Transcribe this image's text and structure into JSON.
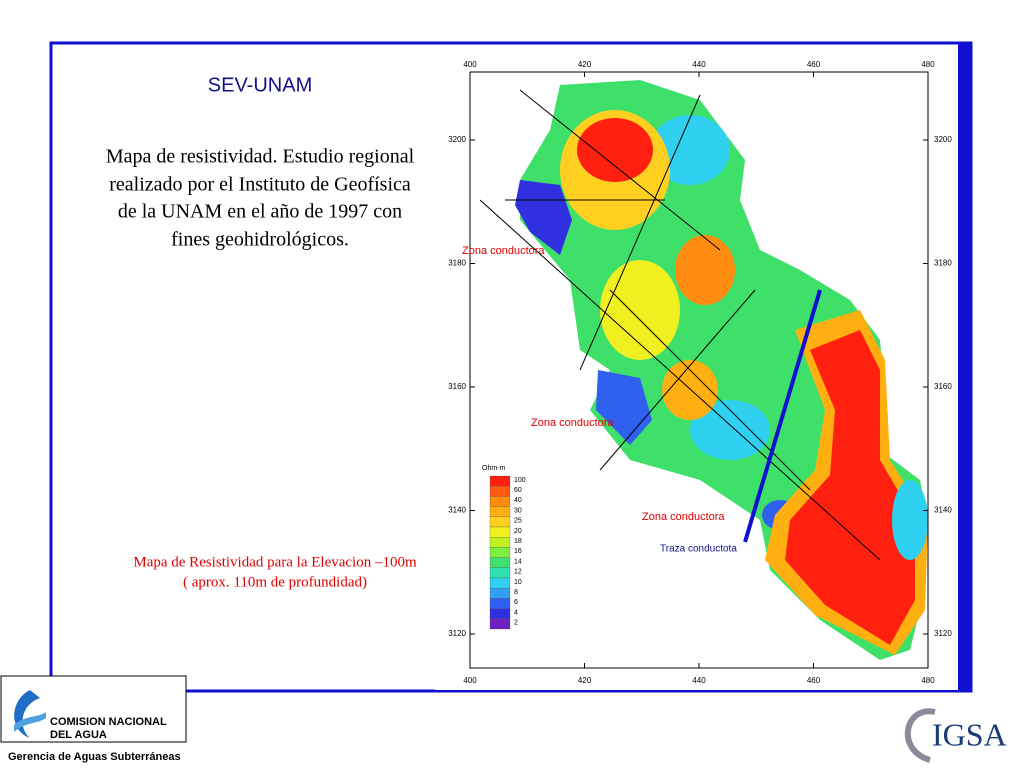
{
  "slide": {
    "title": "SEV-UNAM",
    "description": [
      "Mapa de resistividad. Estudio regional",
      "realizado por el Instituto de Geofísica",
      "de la UNAM en el año de 1997 con",
      "fines geohidrológicos."
    ],
    "caption": [
      "Mapa de Resistividad para la Elevacion –100m",
      "( aprox. 110m de profundidad)"
    ]
  },
  "map": {
    "xticks": [
      400,
      420,
      440,
      460,
      480
    ],
    "yticks": [
      3120,
      3140,
      3160,
      3180,
      3200
    ],
    "legend_title": "Ohm-m",
    "legend_levels": [
      100,
      60,
      40,
      30,
      25,
      20,
      18,
      16,
      14,
      12,
      10,
      8,
      6,
      4,
      2
    ],
    "legend_colors": [
      "#ff2010",
      "#ff5a10",
      "#ff8c10",
      "#ffb010",
      "#ffd020",
      "#f0f020",
      "#c0f020",
      "#80f040",
      "#40e070",
      "#30e0b0",
      "#30d0f0",
      "#30a0f0",
      "#3060f0",
      "#3030e0",
      "#7020c0"
    ],
    "annotations": [
      "Zona conductora",
      "Zona conductora",
      "Zona conductora"
    ],
    "trace_label": "Traza conductota"
  },
  "logos": {
    "left": [
      "COMISION NACIONAL",
      "DEL  AGUA"
    ],
    "left_caption": "Gerencia de Aguas Subterráneas",
    "right": "IGSA"
  }
}
